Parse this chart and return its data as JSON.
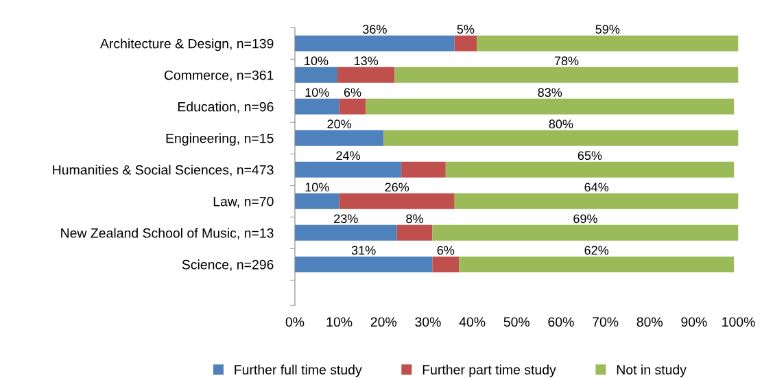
{
  "chart_data": {
    "type": "bar",
    "orientation": "horizontal",
    "stacked": true,
    "categories": [
      "Architecture & Design, n=139",
      "Commerce, n=361",
      "Education, n=96",
      "Engineering, n=15",
      "Humanities & Social Sciences, n=473",
      "Law, n=70",
      "New Zealand School of Music, n=13",
      "Science, n=296"
    ],
    "series": [
      {
        "name": "Further full time study",
        "color": "#4f81bd",
        "values": [
          36,
          9.6,
          10,
          20,
          24,
          10,
          23,
          31
        ],
        "value_labels": [
          "36%",
          "10%",
          "10%",
          "20%",
          "24%",
          "10%",
          "23%",
          "31%"
        ]
      },
      {
        "name": "Further part time study",
        "color": "#c0504d",
        "values": [
          5,
          12.9,
          6,
          0,
          10,
          26,
          8,
          6
        ],
        "value_labels": [
          "5%",
          "13%",
          "6%",
          null,
          null,
          "26%",
          "8%",
          "6%"
        ]
      },
      {
        "name": "Not in study",
        "color": "#9bbb59",
        "values": [
          59,
          77.5,
          83,
          80,
          65,
          64,
          69,
          62
        ],
        "value_labels": [
          "59%",
          "78%",
          "83%",
          "80%",
          "65%",
          "64%",
          "69%",
          "62%"
        ]
      }
    ],
    "xlim": [
      0,
      100
    ],
    "xticks": [
      {
        "value": 0,
        "label": "0%"
      },
      {
        "value": 10,
        "label": "10%"
      },
      {
        "value": 20,
        "label": "20%"
      },
      {
        "value": 30,
        "label": "30%"
      },
      {
        "value": 40,
        "label": "40%"
      },
      {
        "value": 50,
        "label": "50%"
      },
      {
        "value": 60,
        "label": "60%"
      },
      {
        "value": 70,
        "label": "70%"
      },
      {
        "value": 80,
        "label": "80%"
      },
      {
        "value": 90,
        "label": "90%"
      },
      {
        "value": 100,
        "label": "100%"
      }
    ],
    "grid": false,
    "legend": "bottom"
  }
}
